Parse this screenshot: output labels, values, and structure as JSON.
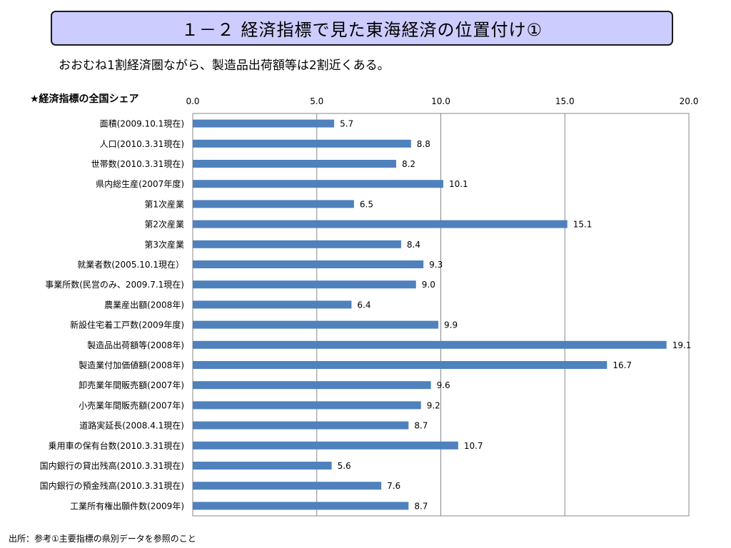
{
  "header": {
    "title": "１－２ 経済指標で見た東海経済の位置付け①",
    "subtitle": "おおむね1割経済圏ながら、製造品出荷額等は2割近くある。"
  },
  "chart_heading": "★経済指標の全国シェア",
  "footer": {
    "source": "出所：参考①主要指標の県別データを参照のこと"
  },
  "colors": {
    "bar": "#4f81bd",
    "title_box": "#ccccff",
    "grid": "#888888"
  },
  "chart_data": {
    "type": "bar",
    "orientation": "horizontal",
    "title": "★経済指標の全国シェア",
    "xlim": [
      0,
      20
    ],
    "x_ticks": [
      "0.0",
      "5.0",
      "10.0",
      "15.0",
      "20.0"
    ],
    "x_tick_values": [
      0,
      5,
      10,
      15,
      20
    ],
    "x_axis_position": "top",
    "grid": true,
    "legend": "none",
    "categories": [
      "面積(2009.10.1現在)",
      "人口(2010.3.31現在)",
      "世帯数(2010.3.31現在)",
      "県内総生産(2007年度)",
      "第1次産業",
      "第2次産業",
      "第3次産業",
      "就業者数(2005.10.1現在）",
      "事業所数(民営のみ、2009.7.1現在)",
      "農業産出額(2008年)",
      "新設住宅着工戸数(2009年度)",
      "製造品出荷額等(2008年)",
      "製造業付加価値額(2008年)",
      "卸売業年間販売額(2007年)",
      "小売業年間販売額(2007年)",
      "道路実延長(2008.4.1現在)",
      "乗用車の保有台数(2010.3.31現在)",
      "国内銀行の貸出残高(2010.3.31現在)",
      "国内銀行の預金残高(2010.3.31現在)",
      "工業所有権出願件数(2009年)"
    ],
    "values": [
      5.7,
      8.8,
      8.2,
      10.1,
      6.5,
      15.1,
      8.4,
      9.3,
      9.0,
      6.4,
      9.9,
      19.1,
      16.7,
      9.6,
      9.2,
      8.7,
      10.7,
      5.6,
      7.6,
      8.7
    ],
    "value_labels": [
      "5.7",
      "8.8",
      "8.2",
      "10.1",
      "6.5",
      "15.1",
      "8.4",
      "9.3",
      "9.0",
      "6.4",
      "9.9",
      "19.1",
      "16.7",
      "9.6",
      "9.2",
      "8.7",
      "10.7",
      "5.6",
      "7.6",
      "8.7"
    ]
  }
}
